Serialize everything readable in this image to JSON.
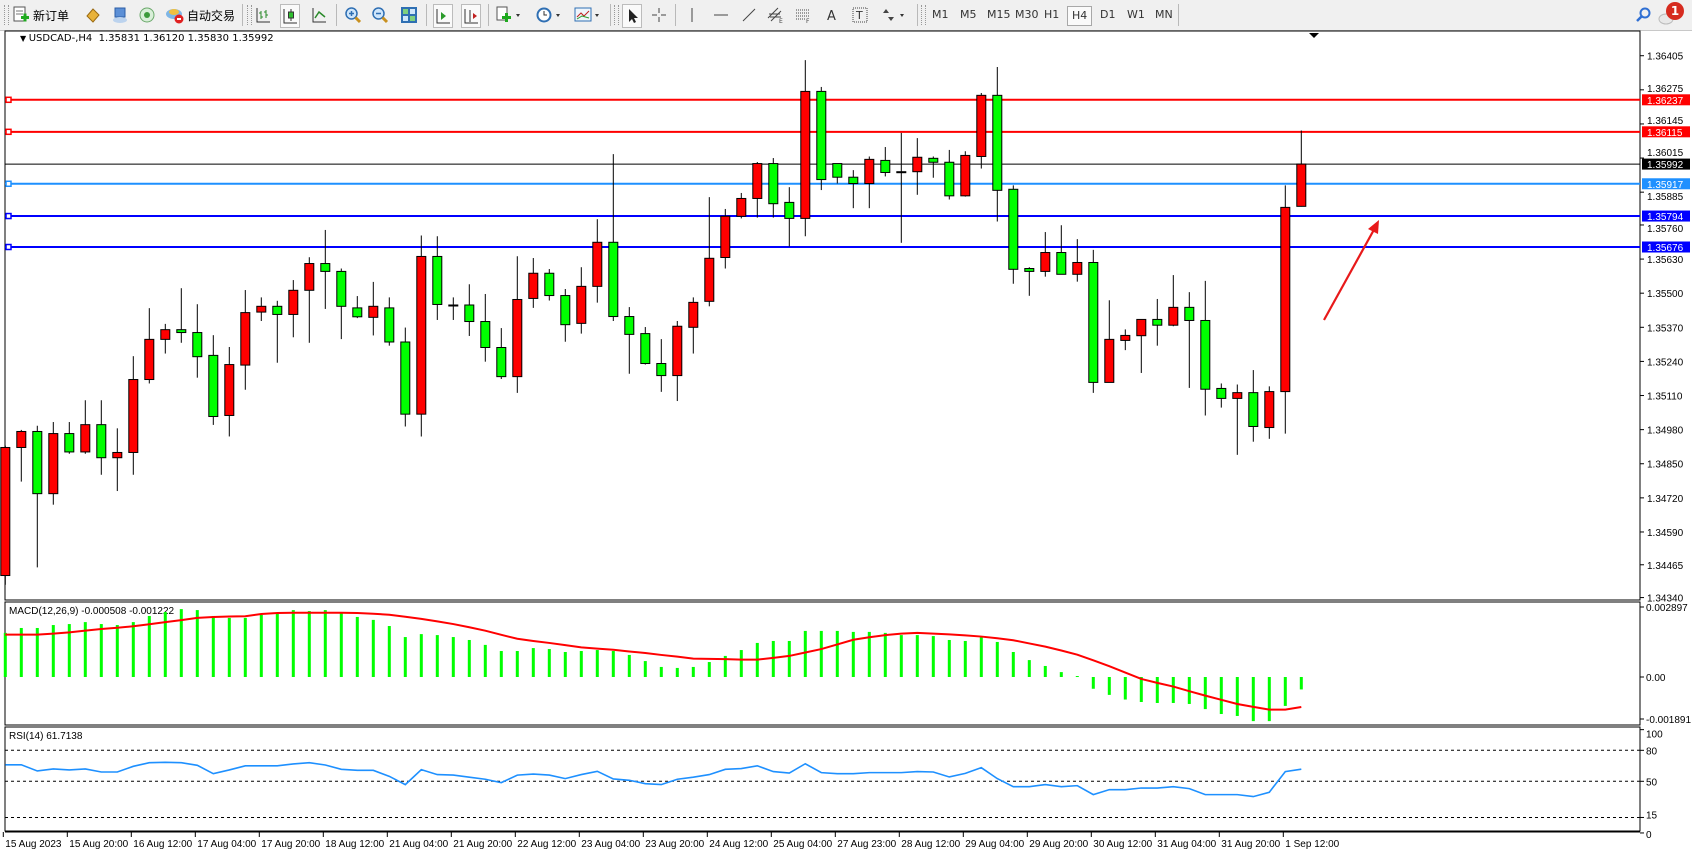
{
  "toolbar": {
    "new_order_label": "新订单",
    "auto_trade_label": "自动交易",
    "timeframes": [
      "M1",
      "M5",
      "M15",
      "M30",
      "H1",
      "H4",
      "D1",
      "W1",
      "MN"
    ],
    "active_timeframe": "H4",
    "notification_count": "1",
    "icons": [
      "new-order-icon",
      "market-watch-icon",
      "navigator-icon",
      "signals-icon",
      "auto-trade-icon",
      "bar-chart-icon",
      "candlestick-icon",
      "line-chart-icon",
      "zoom-in-icon",
      "zoom-out-icon",
      "tile-windows-icon",
      "chart-shift-icon",
      "autoscroll-icon",
      "new-chart-icon",
      "periods-icon",
      "templates-icon",
      "cursor-icon",
      "crosshair-icon",
      "vertical-line-icon",
      "horizontal-line-icon",
      "trendline-icon",
      "equidistant-channel-icon",
      "fibonacci-icon",
      "text-icon",
      "text-label-icon",
      "arrows-icon",
      "search-icon",
      "notification-icon"
    ]
  },
  "chart": {
    "header": "USDCAD-,H4  1.35831 1.36120 1.35830 1.35992"
  },
  "chart_data": [
    {
      "type": "candlestick",
      "symbol": "USDCAD-",
      "timeframe": "H4",
      "candle_format": [
        "open",
        "high",
        "low",
        "close"
      ],
      "bull_color": "#ff0000",
      "bear_color": "#00ff00",
      "candles": [
        [
          1.34424,
          1.34919,
          1.34389,
          1.34912
        ],
        [
          1.34912,
          1.34979,
          1.34782,
          1.34973
        ],
        [
          1.34973,
          1.34995,
          1.34455,
          1.34736
        ],
        [
          1.34736,
          1.35009,
          1.34694,
          1.34965
        ],
        [
          1.34965,
          1.35009,
          1.34888,
          1.34895
        ],
        [
          1.34895,
          1.35092,
          1.34888,
          1.34999
        ],
        [
          1.34999,
          1.35092,
          1.34808,
          1.34873
        ],
        [
          1.34873,
          1.34985,
          1.34746,
          1.34893
        ],
        [
          1.34893,
          1.3526,
          1.34808,
          1.35171
        ],
        [
          1.35171,
          1.35443,
          1.35156,
          1.35324
        ],
        [
          1.35324,
          1.35383,
          1.3527,
          1.35361
        ],
        [
          1.35361,
          1.35519,
          1.35311,
          1.3535
        ],
        [
          1.3535,
          1.35458,
          1.35178,
          1.35258
        ],
        [
          1.35263,
          1.3534,
          1.34998,
          1.3503
        ],
        [
          1.35034,
          1.35295,
          1.34954,
          1.35228
        ],
        [
          1.35226,
          1.35512,
          1.35132,
          1.35426
        ],
        [
          1.35428,
          1.35484,
          1.35394,
          1.3545
        ],
        [
          1.3545,
          1.35471,
          1.35235,
          1.35419
        ],
        [
          1.35419,
          1.3555,
          1.35332,
          1.35511
        ],
        [
          1.35511,
          1.35637,
          1.35311,
          1.35613
        ],
        [
          1.35613,
          1.35741,
          1.3544,
          1.35583
        ],
        [
          1.35583,
          1.35594,
          1.35325,
          1.3545
        ],
        [
          1.35444,
          1.35489,
          1.35405,
          1.3541
        ],
        [
          1.35408,
          1.35543,
          1.35339,
          1.3545
        ],
        [
          1.35444,
          1.35484,
          1.353,
          1.35314
        ],
        [
          1.35314,
          1.35369,
          1.34992,
          1.35039
        ],
        [
          1.35039,
          1.3572,
          1.34954,
          1.3564
        ],
        [
          1.3564,
          1.35717,
          1.35398,
          1.35457
        ],
        [
          1.35455,
          1.35484,
          1.35398,
          1.35455
        ],
        [
          1.35455,
          1.35534,
          1.35337,
          1.35392
        ],
        [
          1.35392,
          1.35497,
          1.35239,
          1.35293
        ],
        [
          1.35293,
          1.35367,
          1.35173,
          1.35182
        ],
        [
          1.35182,
          1.35641,
          1.3512,
          1.35476
        ],
        [
          1.3548,
          1.35634,
          1.35444,
          1.35576
        ],
        [
          1.35576,
          1.35592,
          1.35472,
          1.35491
        ],
        [
          1.35491,
          1.35516,
          1.35315,
          1.3538
        ],
        [
          1.35385,
          1.35599,
          1.35346,
          1.35526
        ],
        [
          1.35526,
          1.35782,
          1.35464,
          1.35694
        ],
        [
          1.35694,
          1.3603,
          1.35394,
          1.35411
        ],
        [
          1.35411,
          1.35447,
          1.35193,
          1.35343
        ],
        [
          1.35346,
          1.35371,
          1.35228,
          1.35232
        ],
        [
          1.35232,
          1.35325,
          1.35124,
          1.35186
        ],
        [
          1.35186,
          1.35394,
          1.35089,
          1.35374
        ],
        [
          1.3537,
          1.35484,
          1.3527,
          1.35465
        ],
        [
          1.35469,
          1.35866,
          1.3545,
          1.35633
        ],
        [
          1.35636,
          1.35821,
          1.35594,
          1.35793
        ],
        [
          1.35793,
          1.35882,
          1.35785,
          1.35861
        ],
        [
          1.35861,
          1.36,
          1.35788,
          1.35994
        ],
        [
          1.35994,
          1.36015,
          1.35788,
          1.35841
        ],
        [
          1.35846,
          1.35904,
          1.35678,
          1.35785
        ],
        [
          1.35785,
          1.36388,
          1.35717,
          1.36269
        ],
        [
          1.36269,
          1.36286,
          1.35893,
          1.35933
        ],
        [
          1.35994,
          1.35994,
          1.35918,
          1.35942
        ],
        [
          1.35942,
          1.35969,
          1.35824,
          1.35918
        ],
        [
          1.35918,
          1.36021,
          1.35824,
          1.3601
        ],
        [
          1.36006,
          1.36057,
          1.35945,
          1.3596
        ],
        [
          1.35963,
          1.36111,
          1.35692,
          1.35963
        ],
        [
          1.35963,
          1.36091,
          1.35875,
          1.36018
        ],
        [
          1.36014,
          1.36021,
          1.3594,
          1.35999
        ],
        [
          1.35999,
          1.36046,
          1.35857,
          1.35871
        ],
        [
          1.35871,
          1.36041,
          1.35868,
          1.36025
        ],
        [
          1.36021,
          1.36263,
          1.35975,
          1.36254
        ],
        [
          1.36254,
          1.36362,
          1.35773,
          1.35892
        ],
        [
          1.35896,
          1.35911,
          1.35536,
          1.35591
        ],
        [
          1.35594,
          1.35599,
          1.3549,
          1.35583
        ],
        [
          1.35583,
          1.35733,
          1.35563,
          1.35655
        ],
        [
          1.35655,
          1.35759,
          1.35572,
          1.35572
        ],
        [
          1.35572,
          1.35706,
          1.35544,
          1.35617
        ],
        [
          1.35617,
          1.35665,
          1.3512,
          1.3516
        ],
        [
          1.3516,
          1.35473,
          1.3516,
          1.35324
        ],
        [
          1.3532,
          1.35362,
          1.35283,
          1.35339
        ],
        [
          1.35338,
          1.354,
          1.35196,
          1.354
        ],
        [
          1.354,
          1.35478,
          1.353,
          1.35378
        ],
        [
          1.35378,
          1.35569,
          1.35374,
          1.35446
        ],
        [
          1.35446,
          1.35504,
          1.35139,
          1.35396
        ],
        [
          1.35396,
          1.35547,
          1.35034,
          1.35134
        ],
        [
          1.35137,
          1.35156,
          1.35064,
          1.35099
        ],
        [
          1.35099,
          1.35152,
          1.34884,
          1.35121
        ],
        [
          1.35121,
          1.35207,
          1.34934,
          1.34992
        ],
        [
          1.34988,
          1.35145,
          1.34945,
          1.35125
        ],
        [
          1.35125,
          1.35911,
          1.34965,
          1.35827
        ],
        [
          1.35831,
          1.3612,
          1.3583,
          1.35992
        ]
      ],
      "time_labels": [
        "15 Aug 2023",
        "15 Aug 20:00",
        "16 Aug 12:00",
        "17 Aug 04:00",
        "17 Aug 20:00",
        "18 Aug 12:00",
        "21 Aug 04:00",
        "21 Aug 20:00",
        "22 Aug 12:00",
        "23 Aug 04:00",
        "23 Aug 20:00",
        "24 Aug 12:00",
        "25 Aug 04:00",
        "27 Aug 23:00",
        "28 Aug 12:00",
        "29 Aug 04:00",
        "29 Aug 20:00",
        "30 Aug 12:00",
        "31 Aug 04:00",
        "31 Aug 20:00",
        "1 Sep 12:00"
      ],
      "price_ticks": [
        "1.36405",
        "1.36275",
        "1.36145",
        "1.36015",
        "1.35885",
        "1.35760",
        "1.35630",
        "1.35500",
        "1.35370",
        "1.35240",
        "1.35110",
        "1.34980",
        "1.34850",
        "1.34720",
        "1.34590",
        "1.34465",
        "1.34340"
      ],
      "ylim": [
        1.3434,
        1.3649
      ],
      "bid": {
        "price": 1.35992,
        "label": "1.35992",
        "color": "#000000"
      },
      "levels": [
        {
          "price": 1.36237,
          "label": "1.36237",
          "color": "#ff0000"
        },
        {
          "price": 1.36115,
          "label": "1.36115",
          "color": "#ff0000"
        },
        {
          "price": 1.35917,
          "label": "1.35917",
          "color": "#1e90ff"
        },
        {
          "price": 1.35794,
          "label": "1.35794",
          "color": "#0000ff"
        },
        {
          "price": 1.35676,
          "label": "1.35676",
          "color": "#0000ff"
        }
      ],
      "annotation_arrow_color": "#e8191a"
    },
    {
      "type": "bar",
      "title": "MACD(12,26,9) -0.000508 -0.001222",
      "histogram_color": "#00ff00",
      "signal_color": "#ff0000",
      "ylim": [
        -0.001891,
        0.002897
      ],
      "axis_labels": [
        "0.002897",
        "0.00",
        "-0.001891"
      ],
      "histogram": [
        0.0018,
        0.002,
        0.002,
        0.00212,
        0.00216,
        0.00224,
        0.00216,
        0.00212,
        0.00224,
        0.00249,
        0.00265,
        0.00277,
        0.00273,
        0.00249,
        0.00241,
        0.00241,
        0.00253,
        0.00257,
        0.00273,
        0.00269,
        0.00273,
        0.00261,
        0.00245,
        0.00233,
        0.00208,
        0.00163,
        0.00175,
        0.00171,
        0.00163,
        0.00151,
        0.00131,
        0.00106,
        0.00106,
        0.00118,
        0.00114,
        0.00102,
        0.00106,
        0.0011,
        0.00106,
        0.0009,
        0.00065,
        0.00041,
        0.00037,
        0.00041,
        0.00061,
        0.00086,
        0.0011,
        0.00139,
        0.00147,
        0.00147,
        0.00188,
        0.00188,
        0.00188,
        0.00184,
        0.00184,
        0.0018,
        0.00171,
        0.00171,
        0.00167,
        0.00151,
        0.00147,
        0.00163,
        0.00143,
        0.00102,
        0.00069,
        0.00045,
        0.0002,
        4e-05,
        -0.00048,
        -0.00073,
        -0.00092,
        -0.00102,
        -0.00106,
        -0.00106,
        -0.0011,
        -0.00131,
        -0.00151,
        -0.00159,
        -0.0018,
        -0.0018,
        -0.00118,
        -0.000508
      ],
      "signal": [
        0.00173,
        0.00173,
        0.00173,
        0.00177,
        0.00182,
        0.00189,
        0.00196,
        0.00201,
        0.00207,
        0.00215,
        0.00224,
        0.00232,
        0.00241,
        0.00245,
        0.00247,
        0.00248,
        0.00257,
        0.00261,
        0.00262,
        0.00262,
        0.00262,
        0.00262,
        0.00261,
        0.00258,
        0.00254,
        0.00246,
        0.00237,
        0.00227,
        0.00216,
        0.00203,
        0.00189,
        0.00172,
        0.00156,
        0.00147,
        0.00139,
        0.0013,
        0.00121,
        0.00116,
        0.00111,
        0.00104,
        0.00098,
        0.0009,
        0.00083,
        0.00075,
        0.00074,
        0.00073,
        0.00071,
        0.00071,
        0.00078,
        0.00086,
        0.001,
        0.00114,
        0.00133,
        0.00152,
        0.00162,
        0.00171,
        0.00177,
        0.0018,
        0.00177,
        0.00174,
        0.0017,
        0.00165,
        0.00158,
        0.0015,
        0.00137,
        0.00124,
        0.00108,
        0.00091,
        0.00068,
        0.00044,
        0.00018,
        -8e-05,
        -0.00024,
        -0.00039,
        -0.00058,
        -0.00076,
        -0.00093,
        -0.0011,
        -0.00122,
        -0.00133,
        -0.00133,
        -0.001222
      ]
    },
    {
      "type": "line",
      "title": "RSI(14) 61.7138",
      "line_color": "#1e90ff",
      "ylim": [
        0,
        100
      ],
      "levels": [
        80,
        50,
        15
      ],
      "axis_labels": [
        "100",
        "80",
        "50",
        "15",
        "0"
      ],
      "values": [
        66,
        66,
        60,
        62,
        61,
        62,
        59,
        59,
        64.5,
        68,
        68.4,
        68,
        65.5,
        57.4,
        61,
        65,
        65,
        65,
        66.8,
        68,
        65.8,
        61.6,
        60.6,
        60.6,
        54.8,
        46.8,
        61.3,
        56.5,
        56,
        54,
        52,
        48.7,
        56,
        57,
        56,
        52.6,
        56.5,
        59.7,
        52.3,
        51,
        47.7,
        46.8,
        52,
        54,
        56.5,
        61.6,
        62.3,
        65,
        59.4,
        58,
        67,
        58.4,
        57.4,
        57.4,
        58.4,
        58.4,
        58.4,
        59.4,
        59,
        54.2,
        57.7,
        63.2,
        52.6,
        44.8,
        44.8,
        46.8,
        44.8,
        45.8,
        37.1,
        41.9,
        41.9,
        43.5,
        43.5,
        44.8,
        42.9,
        37.1,
        37.1,
        37.1,
        35.2,
        39.4,
        59.4,
        61.7138
      ]
    }
  ]
}
